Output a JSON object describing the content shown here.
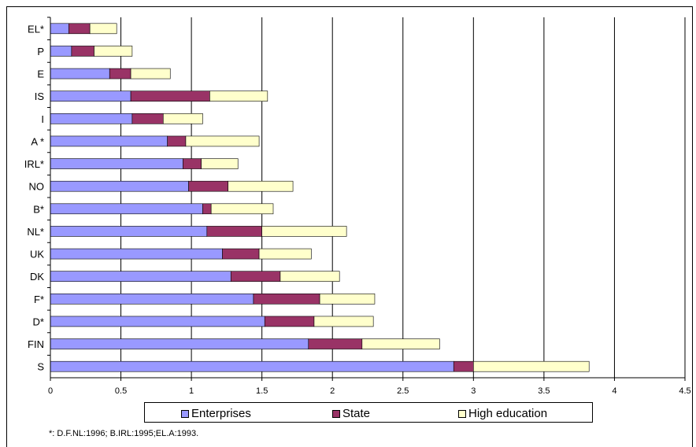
{
  "chart_data": {
    "type": "bar",
    "orientation": "horizontal",
    "stacked": true,
    "categories": [
      "EL*",
      "P",
      "E",
      "IS",
      "I",
      "A *",
      "IRL*",
      "NO",
      "B*",
      "NL*",
      "UK",
      "DK",
      "F*",
      "D*",
      "FIN",
      "S"
    ],
    "series": [
      {
        "name": "Enterprises",
        "color": "#9999ff",
        "values": [
          0.13,
          0.15,
          0.42,
          0.57,
          0.58,
          0.83,
          0.94,
          0.98,
          1.08,
          1.11,
          1.22,
          1.28,
          1.44,
          1.52,
          1.83,
          2.86
        ]
      },
      {
        "name": "State",
        "color": "#993366",
        "values": [
          0.15,
          0.16,
          0.15,
          0.56,
          0.22,
          0.13,
          0.13,
          0.28,
          0.06,
          0.39,
          0.26,
          0.35,
          0.47,
          0.35,
          0.38,
          0.14
        ]
      },
      {
        "name": "High education",
        "color": "#ffffcc",
        "values": [
          0.19,
          0.27,
          0.28,
          0.41,
          0.28,
          0.52,
          0.26,
          0.46,
          0.44,
          0.6,
          0.37,
          0.42,
          0.39,
          0.42,
          0.55,
          0.82
        ]
      }
    ],
    "xlim": [
      0,
      4.5
    ],
    "xticks": [
      "0",
      "0.5",
      "1",
      "1.5",
      "2",
      "2.5",
      "3",
      "3.5",
      "4",
      "4.5"
    ],
    "grid": "vertical",
    "legend_position": "bottom",
    "title": "",
    "xlabel": "",
    "ylabel": ""
  },
  "legend": {
    "enterprises": "Enterprises",
    "state": "State",
    "high_education": "High education"
  },
  "footnote": "*: D.F.NL:1996; B.IRL:1995;EL.A:1993."
}
